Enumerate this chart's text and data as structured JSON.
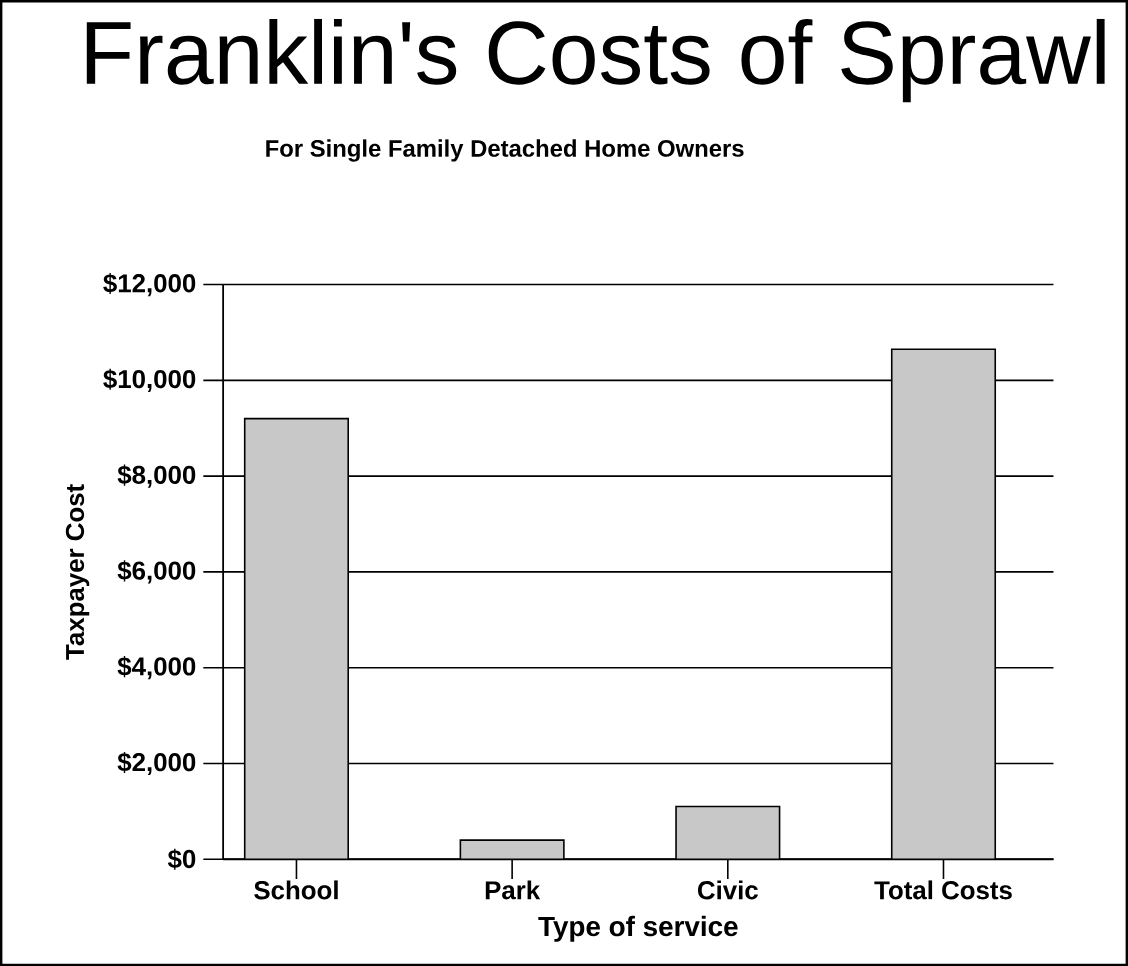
{
  "chart_data": {
    "type": "bar",
    "title": "Franklin's Costs of Sprawl",
    "subtitle": "For Single Family Detached Home Owners",
    "xlabel": "Type of service",
    "ylabel": "Taxpayer Cost",
    "categories": [
      "School",
      "Park",
      "Civic",
      "Total Costs"
    ],
    "values": [
      9200,
      400,
      1100,
      10650
    ],
    "color": "#c8c8c8",
    "ylim": [
      0,
      12000
    ],
    "yticks": [
      {
        "value": 0,
        "label": "$0"
      },
      {
        "value": 2000,
        "label": "$2,000"
      },
      {
        "value": 4000,
        "label": "$4,000"
      },
      {
        "value": 6000,
        "label": "$6,000"
      },
      {
        "value": 8000,
        "label": "$8,000"
      },
      {
        "value": 10000,
        "label": "$10,000"
      },
      {
        "value": 12000,
        "label": "$12,000"
      }
    ],
    "grid": "y"
  }
}
